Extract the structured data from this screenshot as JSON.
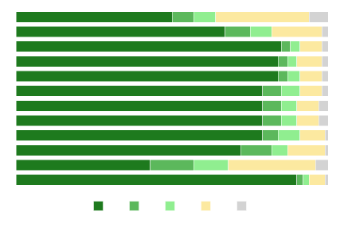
{
  "chart_data": {
    "type": "bar",
    "orientation": "horizontal",
    "stacked": true,
    "categories": [
      null,
      null,
      null,
      null,
      null,
      null,
      null,
      null,
      null,
      null,
      null,
      null
    ],
    "series": [
      {
        "color": "#1e7a1e",
        "values": [
          50,
          67,
          85,
          84,
          84,
          79,
          79,
          79,
          79,
          72,
          43,
          90
        ]
      },
      {
        "color": "#5cb85c",
        "values": [
          7,
          8,
          3,
          3,
          3,
          6,
          6,
          6,
          5,
          10,
          14,
          2
        ]
      },
      {
        "color": "#90ee90",
        "values": [
          7,
          7,
          3,
          3,
          4,
          6,
          5,
          5,
          7,
          5,
          11,
          2
        ]
      },
      {
        "color": "#fce9a0",
        "values": [
          30,
          16,
          7,
          8,
          7,
          7,
          7,
          7,
          8,
          12,
          28,
          5
        ]
      },
      {
        "color": "#d3d3d3",
        "values": [
          6,
          2,
          2,
          2,
          2,
          2,
          3,
          3,
          1,
          1,
          4,
          1
        ]
      }
    ],
    "xlim": [
      0,
      100
    ],
    "grid": false,
    "tick_labels": false,
    "legend": "bottom"
  }
}
